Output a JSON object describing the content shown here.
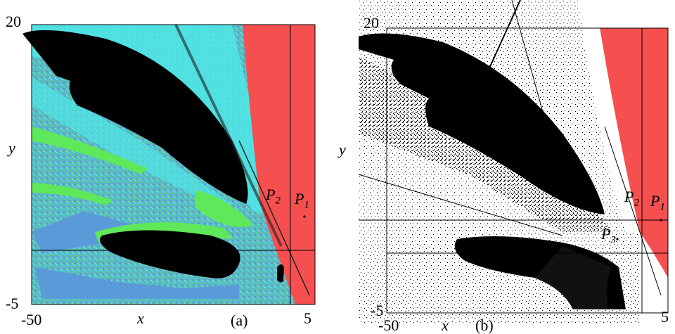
{
  "panel_a": {
    "y_top": "20",
    "y_bottom": "-5",
    "x_left": "-50",
    "x_right": "5",
    "x_axis": "x",
    "y_axis": "y",
    "tag": "(a)",
    "p1": "P",
    "p1_sub": "1",
    "p2": "P",
    "p2_sub": "2"
  },
  "panel_b": {
    "y_top": "20",
    "y_bottom": "-5",
    "x_left": "-50",
    "x_right": "5",
    "x_axis": "x",
    "y_axis": "y",
    "tag": "(b)",
    "p1": "P",
    "p1_sub": "1",
    "p2": "P",
    "p2_sub": "2",
    "p3": "P",
    "p3_sub": "3"
  },
  "colors": {
    "cyan": "#4fe6e6",
    "blue": "#5aa0d8",
    "green": "#5fe85a",
    "red": "#f54f4f",
    "black": "#000000",
    "mix": "#5ab8c8"
  }
}
